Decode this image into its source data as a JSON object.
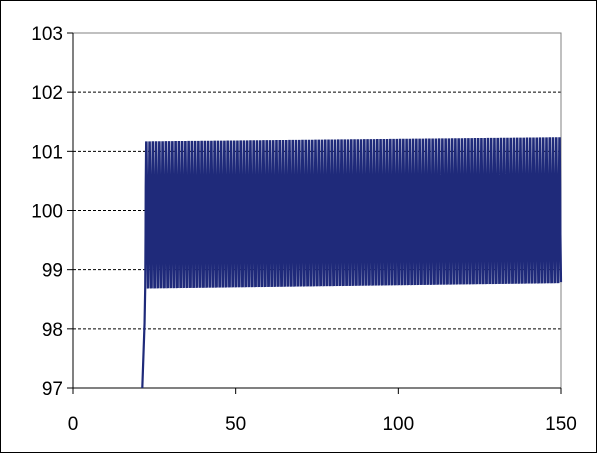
{
  "chart_data": {
    "type": "line",
    "title": "",
    "xlabel": "",
    "ylabel": "",
    "xlim": [
      0,
      150
    ],
    "ylim": [
      97,
      103
    ],
    "x_ticks": [
      0,
      50,
      100,
      150
    ],
    "y_ticks": [
      97,
      98,
      99,
      100,
      101,
      102,
      103
    ],
    "x_tick_labels": [
      "0",
      "50",
      "100",
      "150"
    ],
    "y_tick_labels": [
      "97",
      "98",
      "99",
      "100",
      "101",
      "102",
      "103"
    ],
    "grid": "horizontal dashed",
    "legend": "none",
    "series": [
      {
        "color": "#1f2a7a",
        "description_values": {
          "rise_x": [
            21.3,
            22.0,
            22.2
          ],
          "rise_y": [
            97.0,
            98.1,
            98.7
          ],
          "oscillation_start_x": 22.2,
          "oscillation_end_x": 150,
          "oscillation_period": 1.0,
          "max_start": 101.15,
          "max_end": 101.22,
          "min_start": 98.7,
          "min_end": 98.79,
          "inner_levels": [
            100.4,
            99.6
          ]
        }
      }
    ]
  }
}
